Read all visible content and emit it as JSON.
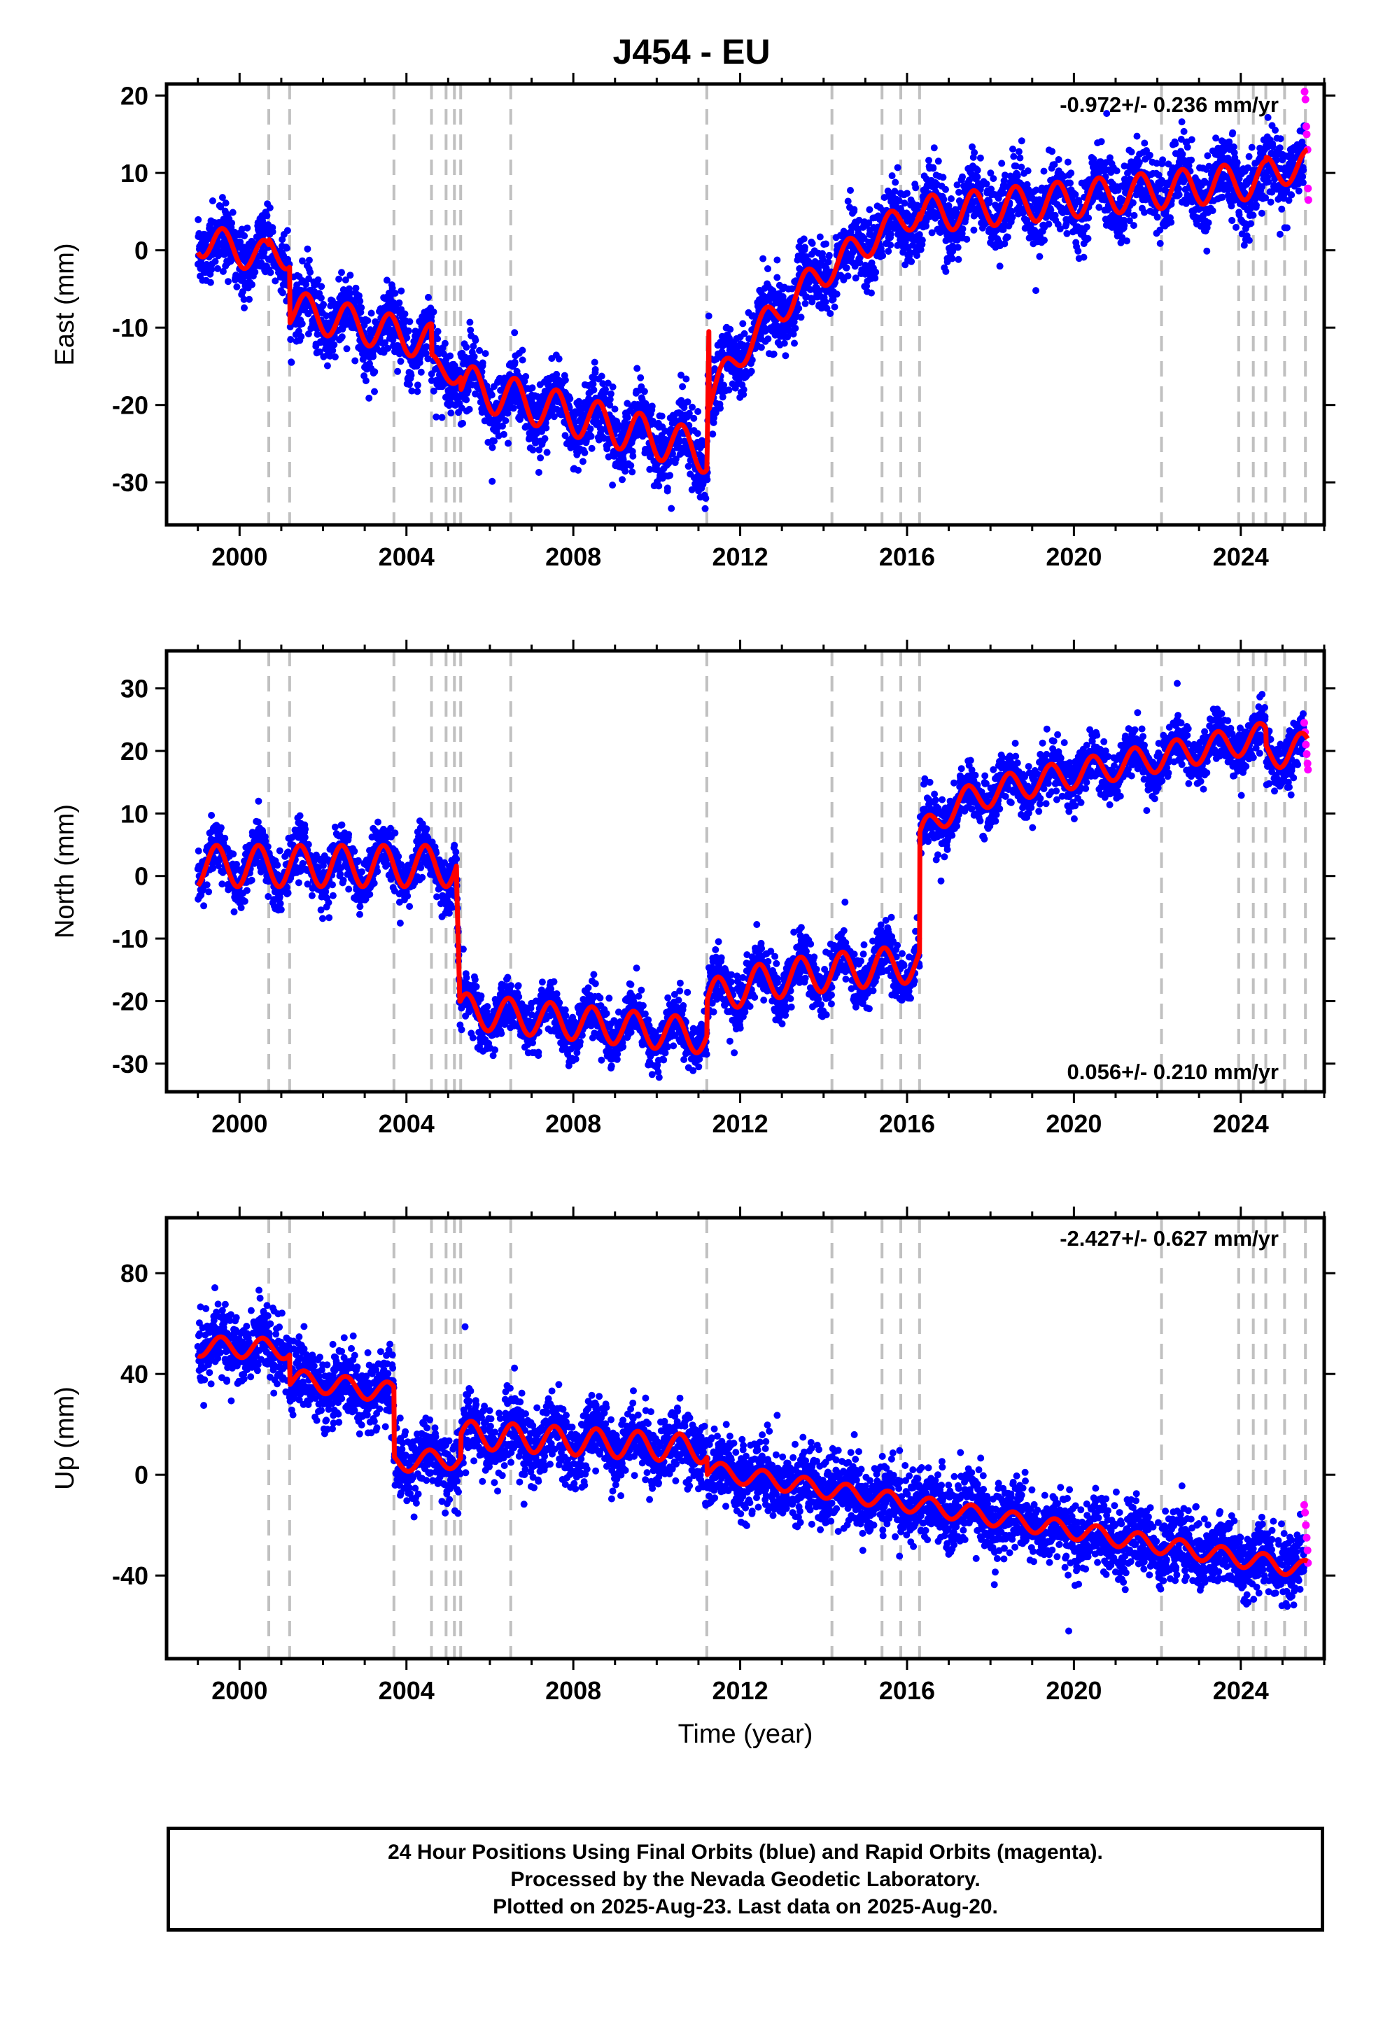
{
  "title": "J454 - EU",
  "xlabel": "Time (year)",
  "footer": {
    "line1": "24 Hour Positions Using Final Orbits (blue) and Rapid Orbits (magenta).",
    "line2": "Processed by the Nevada Geodetic Laboratory.",
    "line3": "Plotted on 2025-Aug-23. Last data on 2025-Aug-20."
  },
  "colors": {
    "final_orbits": "#0000ff",
    "rapid_orbits": "#ff00ff",
    "model": "#ff0000",
    "event_lines": "#c0c0c0"
  },
  "chart_data": [
    {
      "type": "scatter",
      "ylabel": "East (mm)",
      "rate": "-0.972+/- 0.236 mm/yr",
      "rate_position": "top-right",
      "xlim": [
        1998.25,
        2026.0
      ],
      "ylim": [
        -35.5,
        21.5
      ],
      "x_ticks": [
        2000,
        2004,
        2008,
        2012,
        2016,
        2020,
        2024
      ],
      "y_ticks": [
        -30,
        -20,
        -10,
        0,
        10,
        20
      ],
      "grid": false,
      "event_lines": [
        2000.7,
        2001.2,
        2003.7,
        2004.6,
        2004.95,
        2005.15,
        2005.3,
        2006.5,
        2011.2,
        2014.2,
        2015.4,
        2015.85,
        2016.3,
        2022.1,
        2023.95,
        2024.3,
        2024.6,
        2025.05,
        2025.55
      ],
      "rapid_points": [
        [
          2025.53,
          20.5
        ],
        [
          2025.55,
          19.5
        ],
        [
          2025.57,
          16
        ],
        [
          2025.58,
          15
        ],
        [
          2025.6,
          13
        ],
        [
          2025.61,
          8
        ],
        [
          2025.62,
          6.5
        ]
      ],
      "model_segments": [
        {
          "start": 1999.0,
          "end": 2000.7,
          "a": 1.5,
          "b": -1.5,
          "amp": 2.2,
          "phase": 0.35
        },
        {
          "start": 2000.7,
          "end": 2001.2,
          "a": 0.0,
          "b": -1.5,
          "amp": 1.8,
          "phase": 0.35
        },
        {
          "start": 2001.2,
          "end": 2004.6,
          "a": -7.5,
          "b": -1.3,
          "amp": 2.4,
          "phase": 0.35
        },
        {
          "start": 2004.6,
          "end": 2005.3,
          "a": -15.0,
          "b": -1.4,
          "amp": 1.5,
          "phase": 0.35
        },
        {
          "start": 2005.3,
          "end": 2011.2,
          "a": -17.3,
          "b": -1.5,
          "amp": 2.7,
          "phase": 0.35
        },
        {
          "start": 2011.2,
          "end": 2011.25,
          "a": -29.0,
          "b": 370,
          "amp": 0.0,
          "phase": 0.35
        },
        {
          "start": 2011.25,
          "end": 2016.3,
          "a": -9.5,
          "b": 3.0,
          "amp": 2.0,
          "phase": 0.35,
          "decay": {
            "amp": -10,
            "tau": 1.5
          }
        },
        {
          "start": 2016.3,
          "end": 2024.6,
          "a": 4.6,
          "b": 0.55,
          "amp": 2.4,
          "phase": 0.35
        },
        {
          "start": 2024.6,
          "end": 2025.6,
          "a": 10.0,
          "b": 1.0,
          "amp": 2.0,
          "phase": 0.35
        }
      ]
    },
    {
      "type": "scatter",
      "ylabel": "North (mm)",
      "rate": "0.056+/- 0.210 mm/yr",
      "rate_position": "bottom-right",
      "xlim": [
        1998.25,
        2026.0
      ],
      "ylim": [
        -34.5,
        36.0
      ],
      "x_ticks": [
        2000,
        2004,
        2008,
        2012,
        2016,
        2020,
        2024
      ],
      "y_ticks": [
        -30,
        -20,
        -10,
        0,
        10,
        20,
        30
      ],
      "grid": false,
      "event_lines": [
        2000.7,
        2001.2,
        2003.7,
        2004.6,
        2004.95,
        2005.15,
        2005.3,
        2006.5,
        2011.2,
        2014.2,
        2015.4,
        2015.85,
        2016.3,
        2022.1,
        2023.95,
        2024.3,
        2024.6,
        2025.05,
        2025.55
      ],
      "rapid_points": [
        [
          2025.52,
          24.5
        ],
        [
          2025.54,
          23
        ],
        [
          2025.56,
          21
        ],
        [
          2025.58,
          19.5
        ],
        [
          2025.6,
          18
        ],
        [
          2025.61,
          17
        ]
      ],
      "model_segments": [
        {
          "start": 1999.0,
          "end": 2005.2,
          "a": 1.6,
          "b": 0.0,
          "amp": 3.3,
          "phase": 0.2
        },
        {
          "start": 2005.2,
          "end": 2005.28,
          "a": 0.0,
          "b": -250,
          "amp": 0.0,
          "phase": 0.2
        },
        {
          "start": 2005.28,
          "end": 2011.2,
          "a": -21.5,
          "b": -0.7,
          "amp": 2.8,
          "phase": 0.2
        },
        {
          "start": 2011.2,
          "end": 2016.3,
          "a": -17.0,
          "b": 0.6,
          "amp": 3.0,
          "phase": 0.2,
          "decay": {
            "amp": -3,
            "tau": 1.0
          }
        },
        {
          "start": 2016.3,
          "end": 2024.6,
          "a": 11.5,
          "b": 1.3,
          "amp": 2.3,
          "phase": 0.2,
          "decay": {
            "amp": -6,
            "tau": 0.6
          }
        },
        {
          "start": 2024.6,
          "end": 2025.6,
          "a": 19.5,
          "b": 1.0,
          "amp": 2.5,
          "phase": 0.2
        }
      ]
    },
    {
      "type": "scatter",
      "ylabel": "Up (mm)",
      "rate": "-2.427+/- 0.627 mm/yr",
      "rate_position": "top-right",
      "xlim": [
        1998.25,
        2026.0
      ],
      "ylim": [
        -73.0,
        102.0
      ],
      "x_ticks": [
        2000,
        2004,
        2008,
        2012,
        2016,
        2020,
        2024
      ],
      "y_ticks": [
        -40,
        0,
        40,
        80
      ],
      "grid": false,
      "event_lines": [
        2000.7,
        2001.2,
        2003.7,
        2004.6,
        2004.95,
        2005.15,
        2005.3,
        2006.5,
        2011.2,
        2014.2,
        2015.4,
        2015.85,
        2016.3,
        2022.1,
        2023.95,
        2024.3,
        2024.6,
        2025.05,
        2025.55
      ],
      "rapid_points": [
        [
          2025.52,
          -12
        ],
        [
          2025.54,
          -15
        ],
        [
          2025.56,
          -20
        ],
        [
          2025.58,
          -25
        ],
        [
          2025.6,
          -30
        ],
        [
          2025.61,
          -35
        ]
      ],
      "model_segments": [
        {
          "start": 1999.0,
          "end": 2001.2,
          "a": 51.0,
          "b": -0.5,
          "amp": 4.0,
          "phase": 0.3
        },
        {
          "start": 2001.2,
          "end": 2003.7,
          "a": 38.0,
          "b": -2.2,
          "amp": 4.0,
          "phase": 0.3
        },
        {
          "start": 2003.7,
          "end": 2005.3,
          "a": 5.0,
          "b": 1.0,
          "amp": 4.0,
          "phase": 0.3
        },
        {
          "start": 2005.3,
          "end": 2011.2,
          "a": 16.0,
          "b": -1.0,
          "amp": 5.5,
          "phase": 0.3
        },
        {
          "start": 2011.2,
          "end": 2025.6,
          "a": 2.0,
          "b": -2.75,
          "amp": 3.5,
          "phase": 0.3
        }
      ]
    }
  ]
}
